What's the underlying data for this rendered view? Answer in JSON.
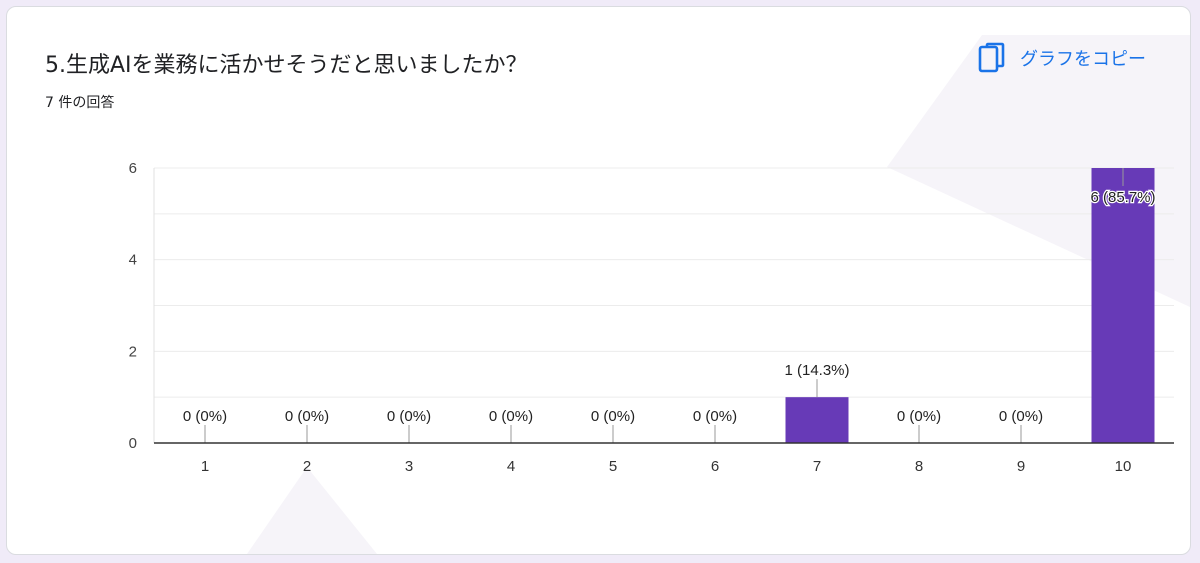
{
  "question": {
    "title": "5.生成AIを業務に活かせそうだと思いましたか？",
    "response_count": "7 件の回答"
  },
  "copy_button": {
    "label": "グラフをコピー",
    "icon": "copy-icon"
  },
  "colors": {
    "bar": "#673ab7",
    "copy_accent": "#1a73e8",
    "background": "#f0ebf8"
  },
  "chart_data": {
    "type": "bar",
    "categories": [
      "1",
      "2",
      "3",
      "4",
      "5",
      "6",
      "7",
      "8",
      "9",
      "10"
    ],
    "values": [
      0,
      0,
      0,
      0,
      0,
      0,
      1,
      0,
      0,
      6
    ],
    "data_labels": [
      "0 (0%)",
      "0 (0%)",
      "0 (0%)",
      "0 (0%)",
      "0 (0%)",
      "0 (0%)",
      "1 (14.3%)",
      "0 (0%)",
      "0 (0%)",
      "6 (85.7%)"
    ],
    "y_ticks": [
      0,
      2,
      4,
      6
    ],
    "ylim": [
      0,
      6
    ],
    "grid": true,
    "title": "",
    "xlabel": "",
    "ylabel": ""
  }
}
